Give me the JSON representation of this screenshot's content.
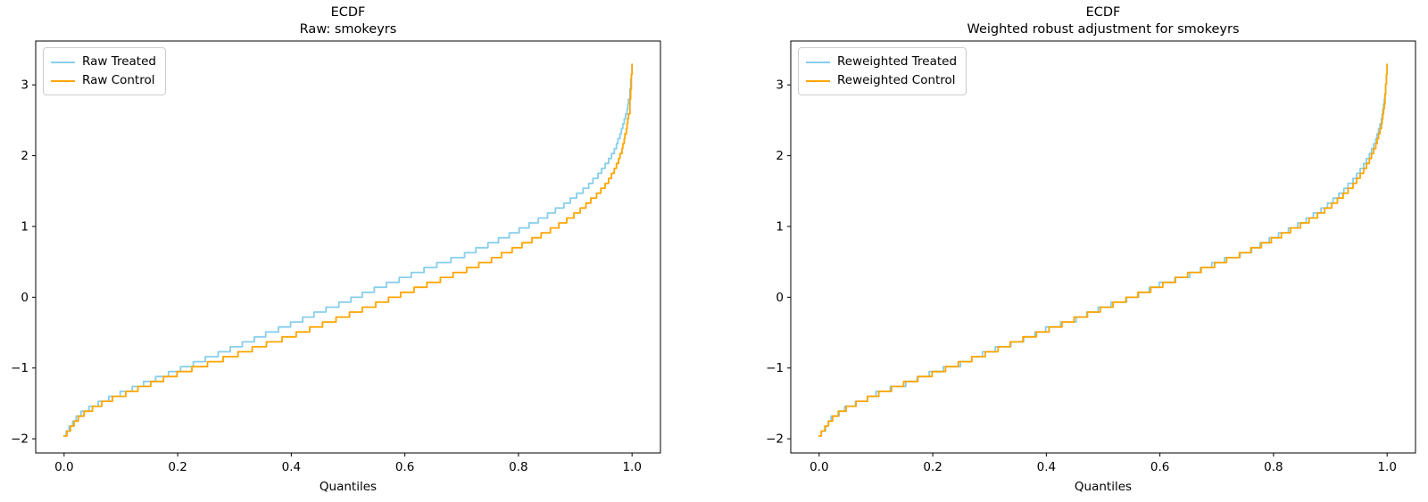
{
  "figure": {
    "background": "#ffffff",
    "xlabel": "Quantiles",
    "axis_color": "#000000"
  },
  "chart_data": [
    {
      "type": "line",
      "subtype": "ecdf-quantile-steps",
      "title": "ECDF",
      "subtitle": "Raw: smokeyrs",
      "xlabel": "Quantiles",
      "ylabel": "",
      "xlim": [
        -0.05,
        1.05
      ],
      "ylim": [
        -2.2,
        3.62
      ],
      "xticks": [
        0.0,
        0.2,
        0.4,
        0.6,
        0.8,
        1.0
      ],
      "yticks": [
        -2,
        -1,
        0,
        1,
        2,
        3
      ],
      "grid": false,
      "legend_position": "upper-left",
      "step": 0.07,
      "series": [
        {
          "name": "Raw Treated",
          "color": "#87CEEB",
          "points": [
            [
              0,
              -1.97
            ],
            [
              0.005,
              -1.9
            ],
            [
              0.01,
              -1.84
            ],
            [
              0.02,
              -1.72
            ],
            [
              0.03,
              -1.64
            ],
            [
              0.05,
              -1.54
            ],
            [
              0.08,
              -1.43
            ],
            [
              0.1,
              -1.36
            ],
            [
              0.15,
              -1.19
            ],
            [
              0.2,
              -1.03
            ],
            [
              0.25,
              -0.87
            ],
            [
              0.3,
              -0.71
            ],
            [
              0.35,
              -0.54
            ],
            [
              0.4,
              -0.38
            ],
            [
              0.45,
              -0.21
            ],
            [
              0.5,
              -0.05
            ],
            [
              0.55,
              0.12
            ],
            [
              0.6,
              0.28
            ],
            [
              0.65,
              0.44
            ],
            [
              0.7,
              0.58
            ],
            [
              0.75,
              0.75
            ],
            [
              0.8,
              0.94
            ],
            [
              0.85,
              1.15
            ],
            [
              0.88,
              1.3
            ],
            [
              0.9,
              1.42
            ],
            [
              0.92,
              1.55
            ],
            [
              0.94,
              1.72
            ],
            [
              0.96,
              1.95
            ],
            [
              0.97,
              2.1
            ],
            [
              0.98,
              2.32
            ],
            [
              0.985,
              2.45
            ],
            [
              0.99,
              2.6
            ],
            [
              0.995,
              2.82
            ],
            [
              1,
              3.28
            ]
          ]
        },
        {
          "name": "Raw Control",
          "color": "#FFA500",
          "points": [
            [
              0,
              -1.97
            ],
            [
              0.005,
              -1.92
            ],
            [
              0.01,
              -1.87
            ],
            [
              0.02,
              -1.75
            ],
            [
              0.03,
              -1.67
            ],
            [
              0.05,
              -1.57
            ],
            [
              0.08,
              -1.45
            ],
            [
              0.1,
              -1.39
            ],
            [
              0.15,
              -1.23
            ],
            [
              0.2,
              -1.08
            ],
            [
              0.25,
              -0.95
            ],
            [
              0.3,
              -0.82
            ],
            [
              0.35,
              -0.68
            ],
            [
              0.4,
              -0.55
            ],
            [
              0.45,
              -0.4
            ],
            [
              0.5,
              -0.25
            ],
            [
              0.55,
              -0.1
            ],
            [
              0.6,
              0.06
            ],
            [
              0.65,
              0.21
            ],
            [
              0.7,
              0.36
            ],
            [
              0.75,
              0.52
            ],
            [
              0.8,
              0.71
            ],
            [
              0.85,
              0.92
            ],
            [
              0.88,
              1.06
            ],
            [
              0.9,
              1.17
            ],
            [
              0.92,
              1.31
            ],
            [
              0.94,
              1.46
            ],
            [
              0.96,
              1.66
            ],
            [
              0.97,
              1.82
            ],
            [
              0.98,
              2.02
            ],
            [
              0.985,
              2.18
            ],
            [
              0.99,
              2.37
            ],
            [
              0.995,
              2.62
            ],
            [
              1,
              3.28
            ]
          ]
        }
      ]
    },
    {
      "type": "line",
      "subtype": "ecdf-quantile-steps",
      "title": "ECDF",
      "subtitle": "Weighted robust adjustment for smokeyrs",
      "xlabel": "Quantiles",
      "ylabel": "",
      "xlim": [
        -0.05,
        1.05
      ],
      "ylim": [
        -2.2,
        3.62
      ],
      "xticks": [
        0.0,
        0.2,
        0.4,
        0.6,
        0.8,
        1.0
      ],
      "yticks": [
        -2,
        -1,
        0,
        1,
        2,
        3
      ],
      "grid": false,
      "legend_position": "upper-left",
      "step": 0.07,
      "series": [
        {
          "name": "Reweighted Treated",
          "color": "#87CEEB",
          "points": [
            [
              0,
              -1.97
            ],
            [
              0.005,
              -1.9
            ],
            [
              0.01,
              -1.86
            ],
            [
              0.02,
              -1.72
            ],
            [
              0.03,
              -1.67
            ],
            [
              0.05,
              -1.54
            ],
            [
              0.08,
              -1.46
            ],
            [
              0.1,
              -1.36
            ],
            [
              0.15,
              -1.23
            ],
            [
              0.2,
              -1.06
            ],
            [
              0.25,
              -0.94
            ],
            [
              0.3,
              -0.76
            ],
            [
              0.35,
              -0.63
            ],
            [
              0.4,
              -0.45
            ],
            [
              0.45,
              -0.32
            ],
            [
              0.5,
              -0.14
            ],
            [
              0.55,
              -0.01
            ],
            [
              0.6,
              0.18
            ],
            [
              0.65,
              0.31
            ],
            [
              0.7,
              0.49
            ],
            [
              0.75,
              0.62
            ],
            [
              0.8,
              0.84
            ],
            [
              0.85,
              1.05
            ],
            [
              0.88,
              1.21
            ],
            [
              0.9,
              1.33
            ],
            [
              0.92,
              1.48
            ],
            [
              0.94,
              1.65
            ],
            [
              0.96,
              1.88
            ],
            [
              0.97,
              2.03
            ],
            [
              0.98,
              2.22
            ],
            [
              0.985,
              2.36
            ],
            [
              0.99,
              2.52
            ],
            [
              0.995,
              2.78
            ],
            [
              1,
              3.28
            ]
          ]
        },
        {
          "name": "Reweighted Control",
          "color": "#FFA500",
          "points": [
            [
              0,
              -1.97
            ],
            [
              0.005,
              -1.91
            ],
            [
              0.01,
              -1.85
            ],
            [
              0.02,
              -1.74
            ],
            [
              0.03,
              -1.66
            ],
            [
              0.05,
              -1.56
            ],
            [
              0.08,
              -1.45
            ],
            [
              0.1,
              -1.38
            ],
            [
              0.15,
              -1.22
            ],
            [
              0.2,
              -1.08
            ],
            [
              0.25,
              -0.93
            ],
            [
              0.3,
              -0.78
            ],
            [
              0.35,
              -0.62
            ],
            [
              0.4,
              -0.47
            ],
            [
              0.45,
              -0.31
            ],
            [
              0.5,
              -0.16
            ],
            [
              0.55,
              0.0
            ],
            [
              0.6,
              0.16
            ],
            [
              0.65,
              0.32
            ],
            [
              0.7,
              0.47
            ],
            [
              0.75,
              0.63
            ],
            [
              0.8,
              0.82
            ],
            [
              0.85,
              1.03
            ],
            [
              0.88,
              1.17
            ],
            [
              0.9,
              1.28
            ],
            [
              0.92,
              1.42
            ],
            [
              0.94,
              1.58
            ],
            [
              0.96,
              1.8
            ],
            [
              0.97,
              1.95
            ],
            [
              0.98,
              2.15
            ],
            [
              0.985,
              2.3
            ],
            [
              0.99,
              2.45
            ],
            [
              0.995,
              2.7
            ],
            [
              1,
              3.28
            ]
          ]
        }
      ]
    }
  ]
}
